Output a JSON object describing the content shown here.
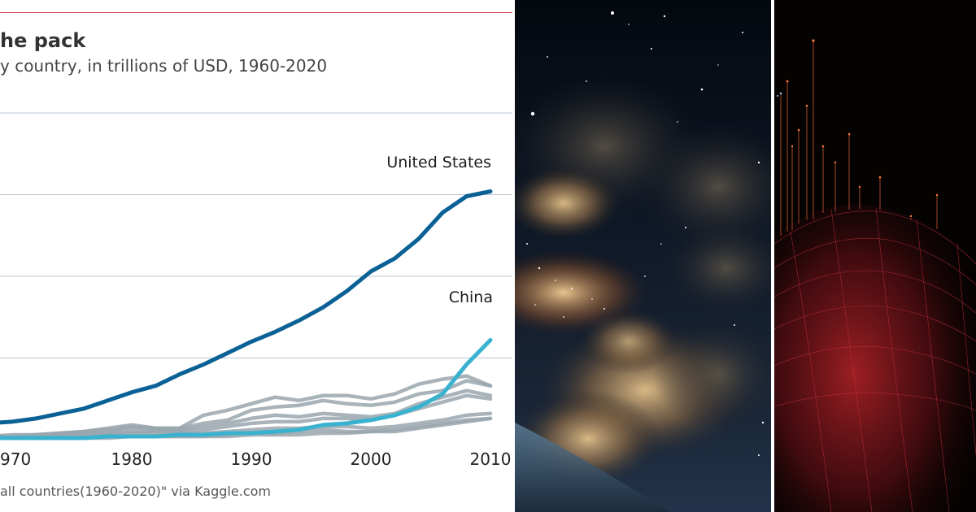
{
  "chart_data": {
    "type": "line",
    "title": "he pack",
    "subtitle": "y country, in trillions of USD, 1960-2020",
    "source": "all countries(1960-2020)\" via Kaggle.com",
    "xlabel": "",
    "ylabel": "",
    "x_range": [
      1960,
      2020
    ],
    "x_ticks": [
      "970",
      "1980",
      "1990",
      "2000",
      "2010"
    ],
    "x_tick_values": [
      1970,
      1980,
      1990,
      2000,
      2010
    ],
    "y_range": [
      0,
      20
    ],
    "y_gridlines": [
      5,
      10,
      15,
      20
    ],
    "grid": true,
    "legend": "none",
    "years": [
      1968,
      1970,
      1972,
      1974,
      1976,
      1978,
      1980,
      1982,
      1984,
      1986,
      1988,
      1990,
      1992,
      1994,
      1996,
      1998,
      2000,
      2002,
      2004,
      2006,
      2008,
      2010,
      2012,
      2014,
      2016,
      2018,
      2020
    ],
    "series": [
      {
        "name": "United States",
        "color": "#0a6196",
        "emphasis": true,
        "values": [
          1.0,
          1.1,
          1.3,
          1.6,
          1.9,
          2.4,
          2.9,
          3.3,
          4.0,
          4.6,
          5.3,
          6.0,
          6.6,
          7.3,
          8.1,
          9.1,
          10.3,
          11.1,
          12.3,
          13.9,
          14.9,
          15.2,
          16.3,
          null,
          null,
          null,
          null
        ]
      },
      {
        "name": "China",
        "color": "#39b2d0",
        "emphasis": true,
        "values": [
          0.1,
          0.1,
          0.1,
          0.1,
          0.1,
          0.2,
          0.2,
          0.2,
          0.3,
          0.3,
          0.4,
          0.4,
          0.5,
          0.6,
          0.9,
          1.0,
          1.2,
          1.5,
          2.0,
          2.8,
          4.6,
          6.1,
          8.6,
          null,
          null,
          null,
          null
        ]
      },
      {
        "name": "",
        "color": "#9aa6ae",
        "emphasis": false,
        "values": [
          0.2,
          0.2,
          0.3,
          0.4,
          0.5,
          0.7,
          0.9,
          0.7,
          0.7,
          1.5,
          1.8,
          2.2,
          2.6,
          2.4,
          2.7,
          2.7,
          2.5,
          2.8,
          3.4,
          3.7,
          3.9,
          3.3,
          3.7,
          null,
          null,
          null,
          null
        ]
      },
      {
        "name": "",
        "color": "#9aa6ae",
        "emphasis": false,
        "values": [
          0.2,
          0.3,
          0.3,
          0.4,
          0.5,
          0.6,
          0.8,
          0.7,
          0.7,
          1.0,
          1.2,
          1.8,
          2.0,
          2.1,
          2.4,
          2.2,
          2.1,
          2.3,
          2.8,
          3.0,
          3.6,
          3.3,
          3.1,
          null,
          null,
          null,
          null
        ]
      },
      {
        "name": "",
        "color": "#9aa6ae",
        "emphasis": false,
        "values": [
          0.2,
          0.2,
          0.3,
          0.4,
          0.4,
          0.5,
          0.7,
          0.6,
          0.6,
          0.8,
          1.0,
          1.3,
          1.5,
          1.4,
          1.6,
          1.5,
          1.4,
          1.6,
          2.2,
          2.6,
          3.0,
          2.7,
          2.8,
          null,
          null,
          null,
          null
        ]
      },
      {
        "name": "",
        "color": "#9aa6ae",
        "emphasis": false,
        "values": [
          0.1,
          0.1,
          0.2,
          0.2,
          0.3,
          0.4,
          0.5,
          0.5,
          0.5,
          0.6,
          0.8,
          1.0,
          1.1,
          1.1,
          1.3,
          1.3,
          1.2,
          1.5,
          1.9,
          2.3,
          2.7,
          2.5,
          2.5,
          null,
          null,
          null,
          null
        ]
      },
      {
        "name": "",
        "color": "#9aa6ae",
        "emphasis": false,
        "values": [
          0.1,
          0.1,
          0.1,
          0.2,
          0.2,
          0.3,
          0.4,
          0.4,
          0.4,
          0.4,
          0.5,
          0.6,
          0.7,
          0.7,
          0.8,
          0.8,
          0.7,
          0.8,
          1.0,
          1.2,
          1.5,
          1.6,
          1.9,
          null,
          null,
          null,
          null
        ]
      },
      {
        "name": "",
        "color": "#9aa6ae",
        "emphasis": false,
        "values": [
          0.1,
          0.1,
          0.1,
          0.1,
          0.1,
          0.2,
          0.2,
          0.2,
          0.2,
          0.2,
          0.3,
          0.4,
          0.4,
          0.5,
          0.6,
          0.5,
          0.5,
          0.6,
          0.8,
          1.0,
          1.2,
          1.3,
          1.5,
          null,
          null,
          null,
          null
        ]
      },
      {
        "name": "",
        "color": "#9aa6ae",
        "emphasis": false,
        "values": [
          0.1,
          0.1,
          0.1,
          0.1,
          0.1,
          0.1,
          0.2,
          0.2,
          0.2,
          0.2,
          0.2,
          0.3,
          0.3,
          0.3,
          0.4,
          0.4,
          0.5,
          0.5,
          0.7,
          0.9,
          1.1,
          1.3,
          1.2,
          null,
          null,
          null,
          null
        ]
      }
    ],
    "annotations": [
      {
        "text": "United States",
        "series": "United States"
      },
      {
        "text": "China",
        "series": "China"
      }
    ],
    "colors": {
      "rule": "#d9404a",
      "grid": "#b9c8d4",
      "title": "#333333",
      "subtitle": "#444444",
      "axis_text": "#222222",
      "source": "#555555"
    }
  },
  "images": [
    {
      "name": "space-clouds-image",
      "description_icon": "nebula-and-earth-horizon"
    },
    {
      "name": "data-landscape-image",
      "description_icon": "red-wireframe-spike-landscape"
    }
  ]
}
